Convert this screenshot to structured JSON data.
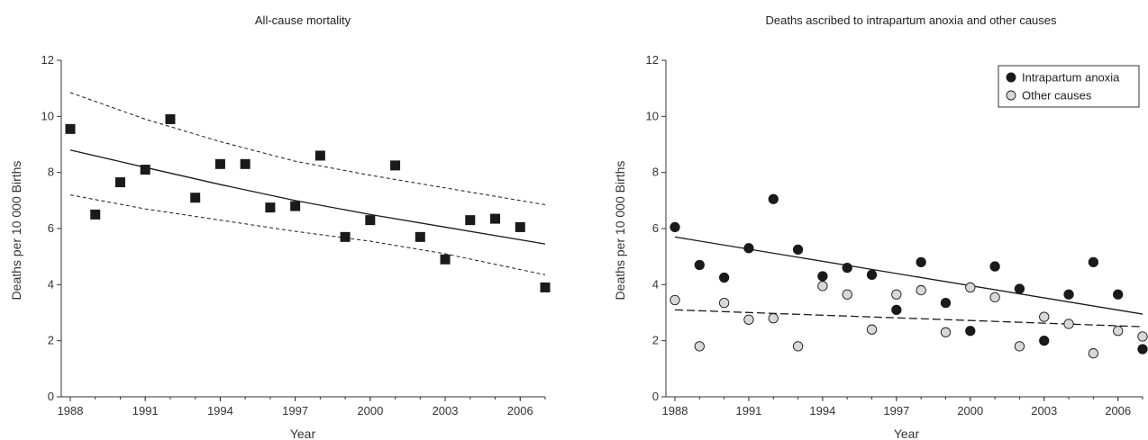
{
  "chart_data": [
    {
      "type": "scatter",
      "title": "All-cause mortality",
      "xlabel": "Year",
      "ylabel": "Deaths per 10 000 Births",
      "xlim": [
        1988,
        2007
      ],
      "ylim": [
        0,
        12
      ],
      "xticks": [
        "1988",
        "1991",
        "1994",
        "1997",
        "2000",
        "2003",
        "2006"
      ],
      "yticks": [
        "0",
        "2",
        "4",
        "6",
        "8",
        "10",
        "12"
      ],
      "marker": "square",
      "marker_color": "#1a1a1a",
      "legend": "none",
      "grid": false,
      "series": [
        {
          "x": [
            1988,
            1989,
            1990,
            1991,
            1992,
            1993,
            1994,
            1995,
            1996,
            1997,
            1998,
            1999,
            2000,
            2001,
            2002,
            2003,
            2004,
            2005,
            2006,
            2007
          ],
          "y": [
            9.55,
            6.5,
            7.65,
            8.1,
            9.9,
            7.1,
            8.3,
            8.3,
            6.75,
            6.8,
            8.6,
            5.7,
            6.3,
            8.25,
            5.7,
            4.9,
            6.3,
            6.35,
            6.05,
            3.9
          ]
        }
      ],
      "fit_lines": [
        {
          "style": "solid",
          "x": [
            1988,
            1991,
            1994,
            1997,
            2000,
            2003,
            2007
          ],
          "y": [
            8.8,
            8.18,
            7.57,
            7.0,
            6.5,
            6.05,
            5.45
          ]
        },
        {
          "style": "dashed",
          "x": [
            1988,
            1991,
            1994,
            1997,
            2000,
            2003,
            2007
          ],
          "y": [
            10.85,
            9.9,
            9.1,
            8.4,
            7.9,
            7.45,
            6.85
          ]
        },
        {
          "style": "dashed",
          "x": [
            1988,
            1991,
            1994,
            1997,
            2000,
            2003,
            2007
          ],
          "y": [
            7.2,
            6.7,
            6.3,
            5.9,
            5.55,
            5.1,
            4.35
          ]
        }
      ]
    },
    {
      "type": "scatter",
      "title": "Deaths ascribed to intrapartum anoxia and other causes",
      "xlabel": "Year",
      "ylabel": "Deaths per 10 000 Births",
      "xlim": [
        1988,
        2007
      ],
      "ylim": [
        0,
        12
      ],
      "xticks": [
        "1988",
        "1991",
        "1994",
        "1997",
        "2000",
        "2003",
        "2006"
      ],
      "yticks": [
        "0",
        "2",
        "4",
        "6",
        "8",
        "10",
        "12"
      ],
      "legend": "top-right",
      "grid": false,
      "series": [
        {
          "name": "Intrapartum anoxia",
          "fill": "#1a1a1a",
          "x": [
            1988,
            1989,
            1990,
            1991,
            1992,
            1993,
            1994,
            1995,
            1996,
            1997,
            1998,
            1999,
            2000,
            2001,
            2002,
            2003,
            2004,
            2005,
            2006,
            2007
          ],
          "y": [
            6.05,
            4.7,
            4.25,
            5.3,
            7.05,
            5.25,
            4.3,
            4.6,
            4.35,
            3.1,
            4.8,
            3.35,
            2.35,
            4.65,
            3.85,
            2.0,
            3.65,
            4.8,
            3.65,
            1.7
          ],
          "fit": {
            "style": "solid",
            "x": [
              1988,
              2007
            ],
            "y": [
              5.7,
              2.95
            ]
          }
        },
        {
          "name": "Other causes",
          "fill": "#d8d8d8",
          "x": [
            1988,
            1989,
            1990,
            1991,
            1992,
            1993,
            1994,
            1995,
            1996,
            1997,
            1998,
            1999,
            2000,
            2001,
            2002,
            2003,
            2004,
            2005,
            2006,
            2007
          ],
          "y": [
            3.45,
            1.8,
            3.35,
            2.75,
            2.8,
            1.8,
            3.95,
            3.65,
            2.4,
            3.65,
            3.8,
            2.3,
            3.9,
            3.55,
            1.8,
            2.85,
            2.6,
            1.55,
            2.35,
            2.15
          ],
          "fit": {
            "style": "dashed",
            "x": [
              1988,
              2007
            ],
            "y": [
              3.1,
              2.5
            ]
          }
        }
      ]
    }
  ]
}
